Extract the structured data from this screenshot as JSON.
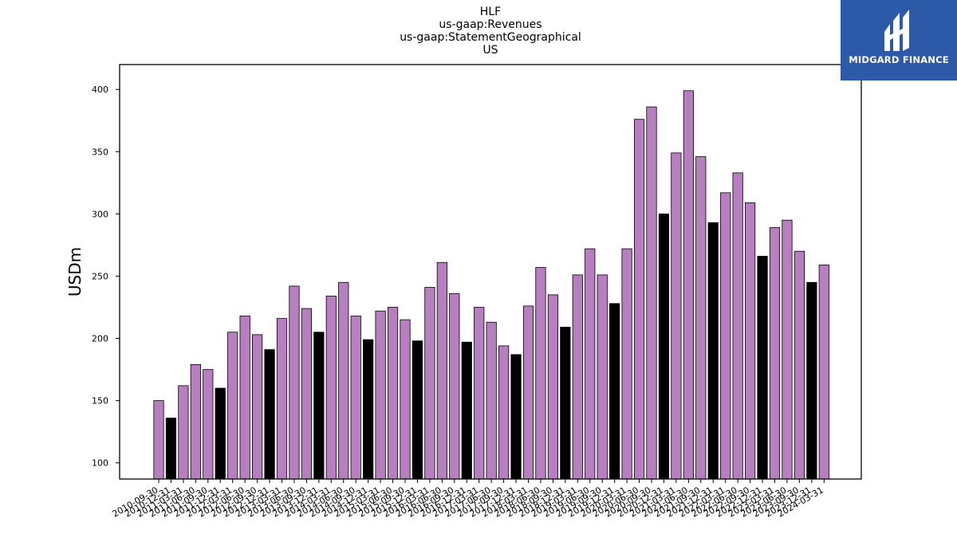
{
  "header": {
    "title_lines": [
      "HLF",
      "us-gaap:Revenues",
      "us-gaap:StatementGeographical",
      "US"
    ]
  },
  "brand": {
    "name": "MIDGARD FINANCE",
    "color": "#2c5aa8",
    "icon": "midgard-logo-icon"
  },
  "colors": {
    "quarter_bar": "#b77fbf",
    "fiscal_year_bar": "#000000",
    "bar_edge": "#000000"
  },
  "chart_data": {
    "type": "bar",
    "title": "HLF\nus-gaap:Revenues\nus-gaap:StatementGeographical\nUS",
    "xlabel": "",
    "ylabel": "USDm",
    "ylim": [
      87,
      420
    ],
    "yticks": [
      100,
      150,
      200,
      250,
      300,
      350,
      400
    ],
    "grid": false,
    "legend": "none",
    "categories": [
      "2010-09-30",
      "2010-12-31",
      "2011-03-31",
      "2011-06-30",
      "2011-09-30",
      "2011-12-31",
      "2012-03-31",
      "2012-06-30",
      "2012-09-30",
      "2012-12-31",
      "2013-03-31",
      "2013-06-30",
      "2013-09-30",
      "2013-12-31",
      "2014-03-31",
      "2014-06-30",
      "2014-09-30",
      "2014-12-31",
      "2015-03-31",
      "2015-06-30",
      "2015-09-30",
      "2015-12-31",
      "2016-03-31",
      "2016-06-30",
      "2016-09-30",
      "2016-12-31",
      "2017-03-31",
      "2017-06-30",
      "2017-09-30",
      "2017-12-31",
      "2018-03-31",
      "2018-06-30",
      "2018-09-30",
      "2018-12-31",
      "2019-03-31",
      "2019-06-30",
      "2019-09-30",
      "2019-12-31",
      "2020-03-31",
      "2020-06-30",
      "2020-09-30",
      "2020-12-31",
      "2021-03-31",
      "2021-06-30",
      "2021-09-30",
      "2021-12-31",
      "2022-03-31",
      "2022-06-30",
      "2022-09-30",
      "2022-12-31",
      "2023-03-31",
      "2023-06-30",
      "2023-09-30",
      "2023-12-31",
      "2024-03-31"
    ],
    "values": [
      150,
      136,
      162,
      179,
      175,
      160,
      205,
      218,
      203,
      191,
      216,
      242,
      224,
      205,
      234,
      245,
      218,
      199,
      222,
      225,
      215,
      198,
      241,
      261,
      236,
      197,
      225,
      213,
      194,
      187,
      226,
      257,
      235,
      209,
      251,
      272,
      251,
      228,
      272,
      376,
      386,
      300,
      349,
      399,
      346,
      293,
      317,
      333,
      309,
      266,
      289,
      295,
      270,
      245,
      259
    ],
    "bar_kinds": [
      "q",
      "y",
      "q",
      "q",
      "q",
      "y",
      "q",
      "q",
      "q",
      "y",
      "q",
      "q",
      "q",
      "y",
      "q",
      "q",
      "q",
      "y",
      "q",
      "q",
      "q",
      "y",
      "q",
      "q",
      "q",
      "y",
      "q",
      "q",
      "q",
      "y",
      "q",
      "q",
      "q",
      "y",
      "q",
      "q",
      "q",
      "y",
      "q",
      "q",
      "q",
      "y",
      "q",
      "q",
      "q",
      "y",
      "q",
      "q",
      "q",
      "y",
      "q",
      "q",
      "q",
      "y",
      "q"
    ]
  }
}
